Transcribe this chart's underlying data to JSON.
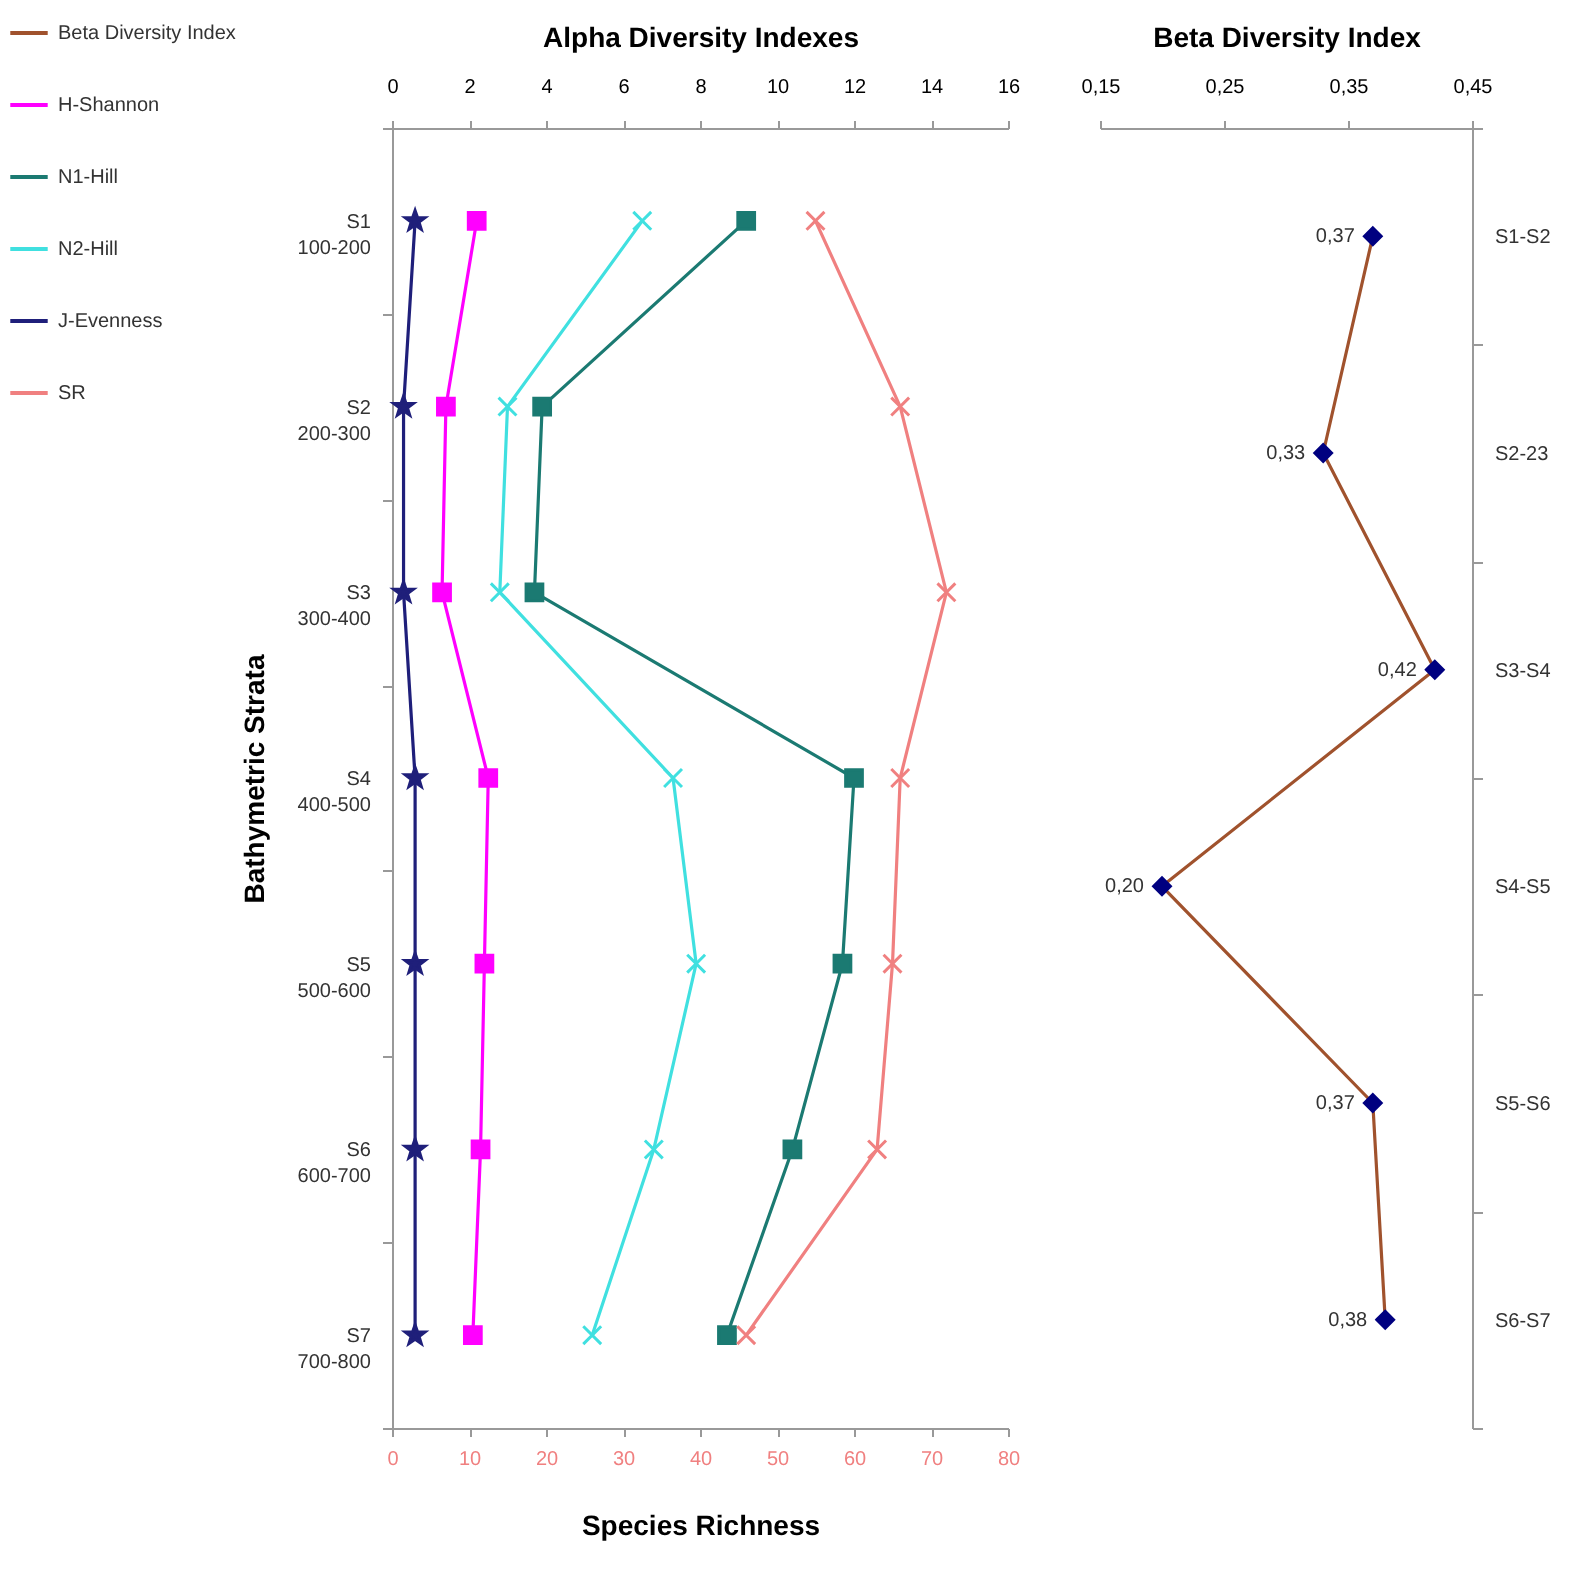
{
  "chart_data": [
    {
      "type": "line",
      "orientation": "horizontal",
      "legend": "top left",
      "ylabel": "Bathymetric Strata",
      "categories": [
        "S1\n100-200",
        "S2\n200-300",
        "S3\n300-400",
        "S4\n400-500",
        "S5\n500-600",
        "S6\n600-700",
        "S7\n700-800"
      ],
      "xlabel": "Species Richness",
      "xlim": [
        0,
        80
      ],
      "xticks": [
        0,
        10,
        20,
        30,
        40,
        50,
        60,
        70,
        80
      ],
      "x2label": "Alpha Diversity Indexes",
      "x2lim": [
        0,
        16
      ],
      "x2ticks": [
        0,
        2,
        4,
        6,
        8,
        10,
        12,
        14,
        16
      ],
      "series": [
        {
          "name": "H-Shannon",
          "color": "#ff00ff",
          "marker": "square",
          "axis": "x2",
          "values": [
            2.2,
            1.4,
            1.3,
            2.5,
            2.4,
            2.3,
            2.1
          ]
        },
        {
          "name": "N1-Hill",
          "color": "#1b7a72",
          "marker": "square",
          "axis": "x2",
          "values": [
            9.2,
            3.9,
            3.7,
            12.0,
            11.7,
            10.4,
            8.7
          ]
        },
        {
          "name": "N2-Hill",
          "color": "#40e0e0",
          "marker": "cross",
          "axis": "x2",
          "values": [
            6.5,
            3.0,
            2.8,
            7.3,
            7.9,
            6.8,
            5.2
          ]
        },
        {
          "name": "J-Evenness",
          "color": "#1f1f7a",
          "marker": "star",
          "axis": "x2",
          "values": [
            0.6,
            0.3,
            0.3,
            0.6,
            0.6,
            0.6,
            0.6
          ]
        },
        {
          "name": "SR",
          "color": "#f08080",
          "marker": "cross",
          "values": [
            55,
            66,
            72,
            66,
            65,
            63,
            46
          ]
        }
      ]
    },
    {
      "type": "line",
      "orientation": "horizontal",
      "categories": [
        "S1-S2",
        "S2-23",
        "S3-S4",
        "S4-S5",
        "S5-S6",
        "S6-S7"
      ],
      "x2label": "Beta Diversity Index",
      "x2lim": [
        0.15,
        0.45
      ],
      "x2ticks": [
        {
          "value": 0.15,
          "label": "0,15"
        },
        {
          "value": 0.25,
          "label": "0,25"
        },
        {
          "value": 0.35,
          "label": "0,35"
        },
        {
          "value": 0.45,
          "label": "0,45"
        }
      ],
      "series": [
        {
          "name": "Beta Diversity Index",
          "color": "#a0522d",
          "colors": [
            "#000080",
            "#000080",
            "#000080",
            "#000080",
            "#000080",
            "#000080"
          ],
          "marker": "diamond",
          "axis": "x2",
          "values": [
            0.37,
            0.33,
            0.42,
            0.2,
            0.37,
            0.38
          ],
          "value_labels": [
            "0,37",
            "0,33",
            "0,42",
            "0,20",
            "0,37",
            "0,38"
          ]
        }
      ]
    }
  ]
}
